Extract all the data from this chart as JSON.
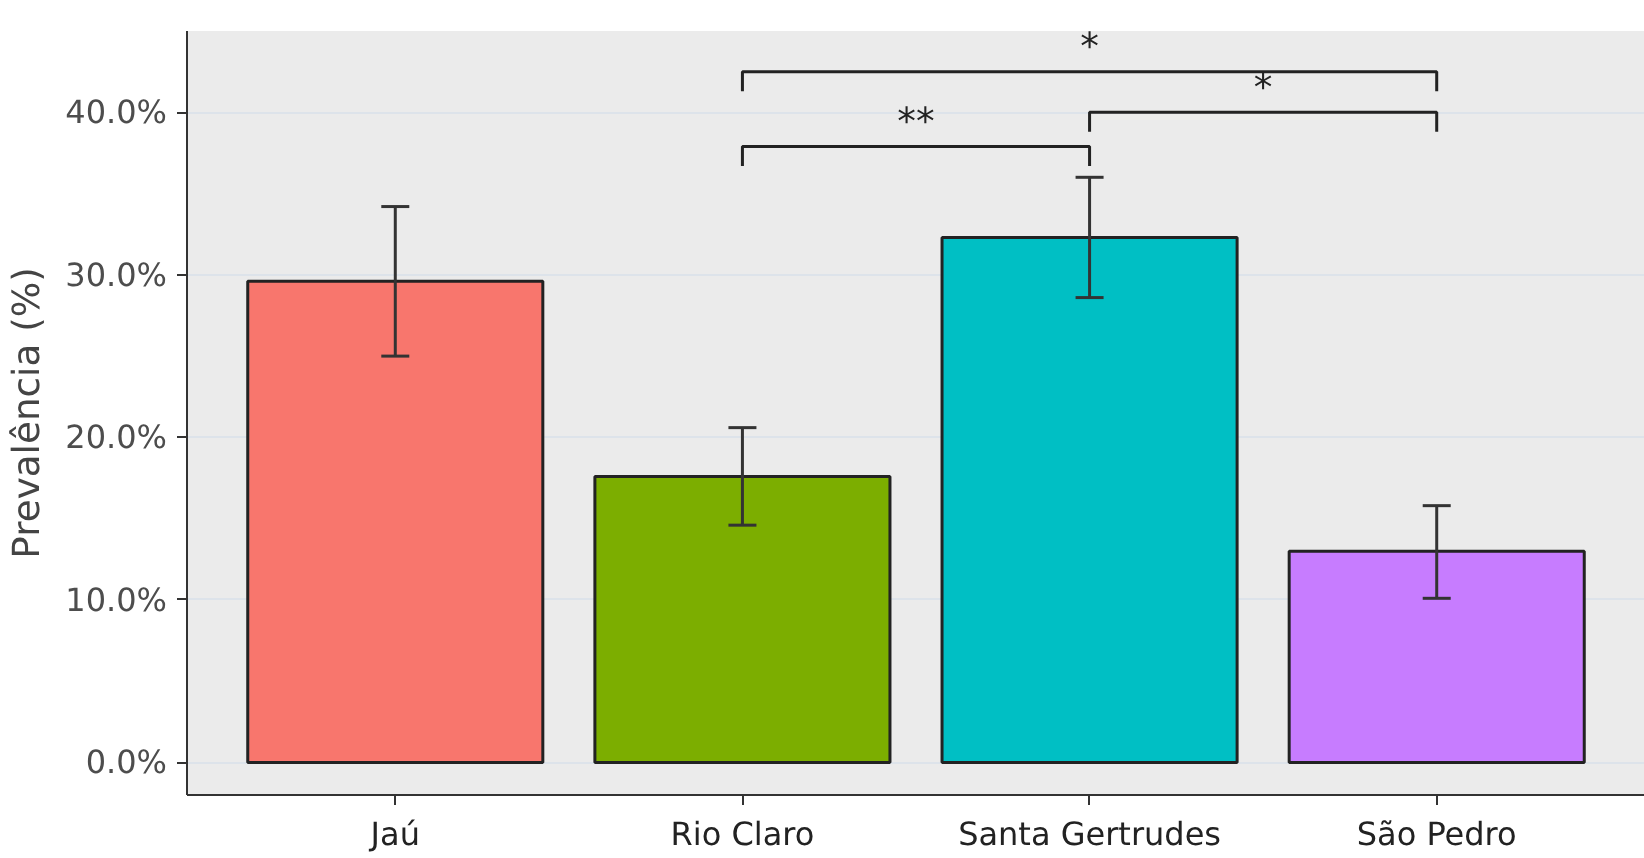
{
  "chart_data": {
    "type": "bar",
    "ylabel": "Prevalência (%)",
    "categories": [
      "Jaú",
      "Rio Claro",
      "Santa Gertrudes",
      "São Pedro"
    ],
    "values": [
      29.6,
      17.6,
      32.3,
      13.0
    ],
    "colors": [
      "#f8766d",
      "#7cae00",
      "#00bfc4",
      "#c77cff"
    ],
    "errors": [
      [
        25.0,
        34.2
      ],
      [
        14.6,
        20.6
      ],
      [
        28.6,
        36.0
      ],
      [
        10.1,
        15.8
      ]
    ],
    "ylim": [
      -2,
      45
    ],
    "yticks": [
      {
        "value": 0,
        "label": "0.0%"
      },
      {
        "value": 10,
        "label": "10.0%"
      },
      {
        "value": 20,
        "label": "20.0%"
      },
      {
        "value": 30,
        "label": "30.0%"
      },
      {
        "value": 40,
        "label": "40.0%"
      }
    ],
    "grid": "y",
    "annotations": [
      "**",
      "*",
      "*"
    ]
  }
}
